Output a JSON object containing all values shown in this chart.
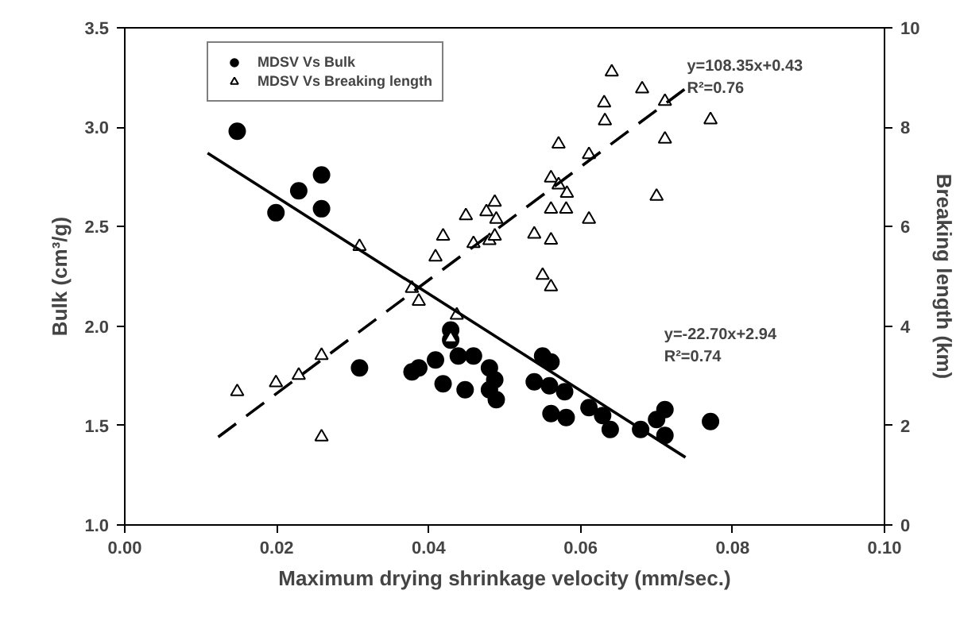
{
  "chart_data": {
    "type": "scatter",
    "xlabel": "Maximum drying shrinkage velocity (mm/sec.)",
    "ylabel": "Bulk (cm³/g)",
    "y2label": "Breaking length (km)",
    "xlim": [
      0,
      0.1
    ],
    "xticks": [
      {
        "value": 0,
        "label": "0.00"
      },
      {
        "value": 0.02,
        "label": "0.02"
      },
      {
        "value": 0.04,
        "label": "0.04"
      },
      {
        "value": 0.06,
        "label": "0.06"
      },
      {
        "value": 0.08,
        "label": "0.08"
      },
      {
        "value": 0.1,
        "label": "0.10"
      }
    ],
    "ylim": [
      1,
      3.5
    ],
    "yticks": [
      {
        "value": 1,
        "label": "1.0"
      },
      {
        "value": 1.5,
        "label": "1.5"
      },
      {
        "value": 2,
        "label": "2.0"
      },
      {
        "value": 2.5,
        "label": "2.5"
      },
      {
        "value": 3,
        "label": "3.0"
      },
      {
        "value": 3.5,
        "label": "3.5"
      }
    ],
    "y2lim": [
      0,
      10
    ],
    "y2ticks": [
      0,
      2,
      4,
      6,
      8,
      10
    ],
    "grid": false,
    "legend": "top",
    "series": [
      {
        "name": "MDSV Vs Bulk",
        "marker": "circle",
        "color": "#000000",
        "x": [
          0.0148,
          0.0199,
          0.0229,
          0.0259,
          0.0259,
          0.0309,
          0.0378,
          0.0387,
          0.0409,
          0.0419,
          0.0429,
          0.0429,
          0.0439,
          0.0459,
          0.0448,
          0.048,
          0.0487,
          0.048,
          0.0489,
          0.0539,
          0.055,
          0.0561,
          0.0559,
          0.0579,
          0.0561,
          0.0581,
          0.0611,
          0.0629,
          0.0639,
          0.0679,
          0.07,
          0.0711,
          0.0711,
          0.0771
        ],
        "values": [
          2.98,
          2.57,
          2.68,
          2.76,
          2.59,
          1.79,
          1.77,
          1.79,
          1.83,
          1.71,
          1.98,
          1.93,
          1.85,
          1.85,
          1.68,
          1.79,
          1.73,
          1.68,
          1.63,
          1.72,
          1.85,
          1.82,
          1.7,
          1.67,
          1.56,
          1.54,
          1.59,
          1.55,
          1.48,
          1.48,
          1.53,
          1.58,
          1.45,
          1.52
        ]
      },
      {
        "name": "MDSV Vs Breaking length",
        "marker": "triangle",
        "axis": "y2",
        "color": "#000000",
        "x": [
          0.0148,
          0.0199,
          0.0229,
          0.0259,
          0.0259,
          0.0309,
          0.0378,
          0.0387,
          0.0409,
          0.0419,
          0.0429,
          0.0437,
          0.0449,
          0.0459,
          0.048,
          0.0487,
          0.0476,
          0.0487,
          0.0489,
          0.0571,
          0.0539,
          0.0561,
          0.055,
          0.0561,
          0.0561,
          0.0571,
          0.0582,
          0.0561,
          0.0581,
          0.0611,
          0.0611,
          0.0631,
          0.0632,
          0.0641,
          0.0681,
          0.07,
          0.0711,
          0.0711,
          0.0771
        ],
        "values": [
          2.68,
          2.86,
          3.01,
          3.41,
          1.77,
          5.6,
          4.76,
          4.5,
          5.39,
          5.81,
          3.75,
          4.22,
          6.22,
          5.66,
          5.72,
          5.81,
          6.3,
          6.49,
          6.15,
          7.66,
          5.85,
          5.73,
          5.02,
          4.79,
          6.98,
          6.84,
          6.67,
          6.35,
          6.35,
          6.15,
          7.45,
          8.49,
          8.13,
          9.11,
          8.77,
          6.61,
          7.76,
          8.52,
          8.15
        ]
      },
      {
        "type": "line",
        "line_style": "solid",
        "color": "#000000",
        "x": [
          0.0109,
          0.0738
        ],
        "values": [
          2.87,
          1.34
        ]
      },
      {
        "type": "line",
        "line_style": "dashed",
        "axis": "y2",
        "color": "#000000",
        "x": [
          0.0123,
          0.0748
        ],
        "values": [
          1.77,
          8.89
        ]
      }
    ],
    "annotations": [
      "y=108.35x+0.43\nR²=0.76",
      "y=-22.70x+2.94\nR²=0.74"
    ]
  }
}
